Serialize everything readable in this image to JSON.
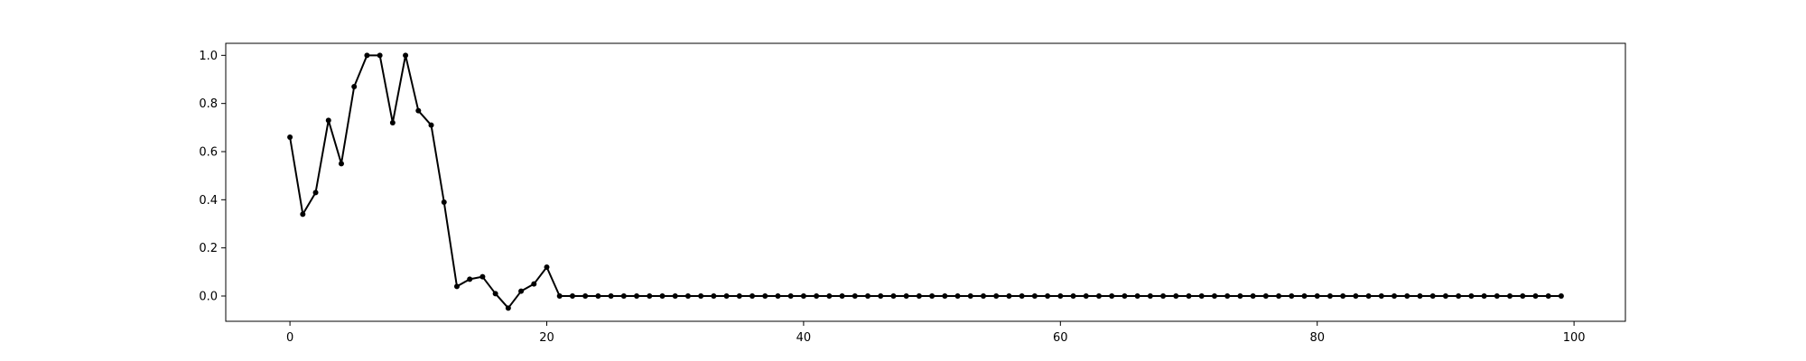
{
  "chart_data": {
    "type": "line",
    "title": "",
    "xlabel": "",
    "ylabel": "",
    "xlim": [
      -5,
      104
    ],
    "ylim": [
      -0.105,
      1.05
    ],
    "xticks": [
      0,
      20,
      40,
      60,
      80,
      100
    ],
    "xtick_labels": [
      "0",
      "20",
      "40",
      "60",
      "80",
      "100"
    ],
    "yticks": [
      0.0,
      0.2,
      0.4,
      0.6,
      0.8,
      1.0
    ],
    "ytick_labels": [
      "0.0",
      "0.2",
      "0.4",
      "0.6",
      "0.8",
      "1.0"
    ],
    "grid": false,
    "line_color": "#000000",
    "marker": "dot",
    "series": [
      {
        "x": [
          0,
          1,
          2,
          3,
          4,
          5,
          6,
          7,
          8,
          9,
          10,
          11,
          12,
          13,
          14,
          15,
          16,
          17,
          18,
          19,
          20,
          21,
          22,
          23,
          24,
          25,
          26,
          27,
          28,
          29,
          30,
          31,
          32,
          33,
          34,
          35,
          36,
          37,
          38,
          39,
          40,
          41,
          42,
          43,
          44,
          45,
          46,
          47,
          48,
          49,
          50,
          51,
          52,
          53,
          54,
          55,
          56,
          57,
          58,
          59,
          60,
          61,
          62,
          63,
          64,
          65,
          66,
          67,
          68,
          69,
          70,
          71,
          72,
          73,
          74,
          75,
          76,
          77,
          78,
          79,
          80,
          81,
          82,
          83,
          84,
          85,
          86,
          87,
          88,
          89,
          90,
          91,
          92,
          93,
          94,
          95,
          96,
          97,
          98,
          99
        ],
        "values": [
          0.66,
          0.34,
          0.43,
          0.73,
          0.55,
          0.87,
          1.0,
          1.0,
          0.72,
          1.0,
          0.77,
          0.71,
          0.39,
          0.04,
          0.07,
          0.08,
          0.01,
          -0.05,
          0.02,
          0.05,
          0.12,
          0,
          0,
          0,
          0,
          0,
          0,
          0,
          0,
          0,
          0,
          0,
          0,
          0,
          0,
          0,
          0,
          0,
          0,
          0,
          0,
          0,
          0,
          0,
          0,
          0,
          0,
          0,
          0,
          0,
          0,
          0,
          0,
          0,
          0,
          0,
          0,
          0,
          0,
          0,
          0,
          0,
          0,
          0,
          0,
          0,
          0,
          0,
          0,
          0,
          0,
          0,
          0,
          0,
          0,
          0,
          0,
          0,
          0,
          0,
          0,
          0,
          0,
          0,
          0,
          0,
          0,
          0,
          0,
          0,
          0,
          0,
          0,
          0,
          0,
          0,
          0,
          0,
          0,
          0
        ]
      }
    ]
  }
}
